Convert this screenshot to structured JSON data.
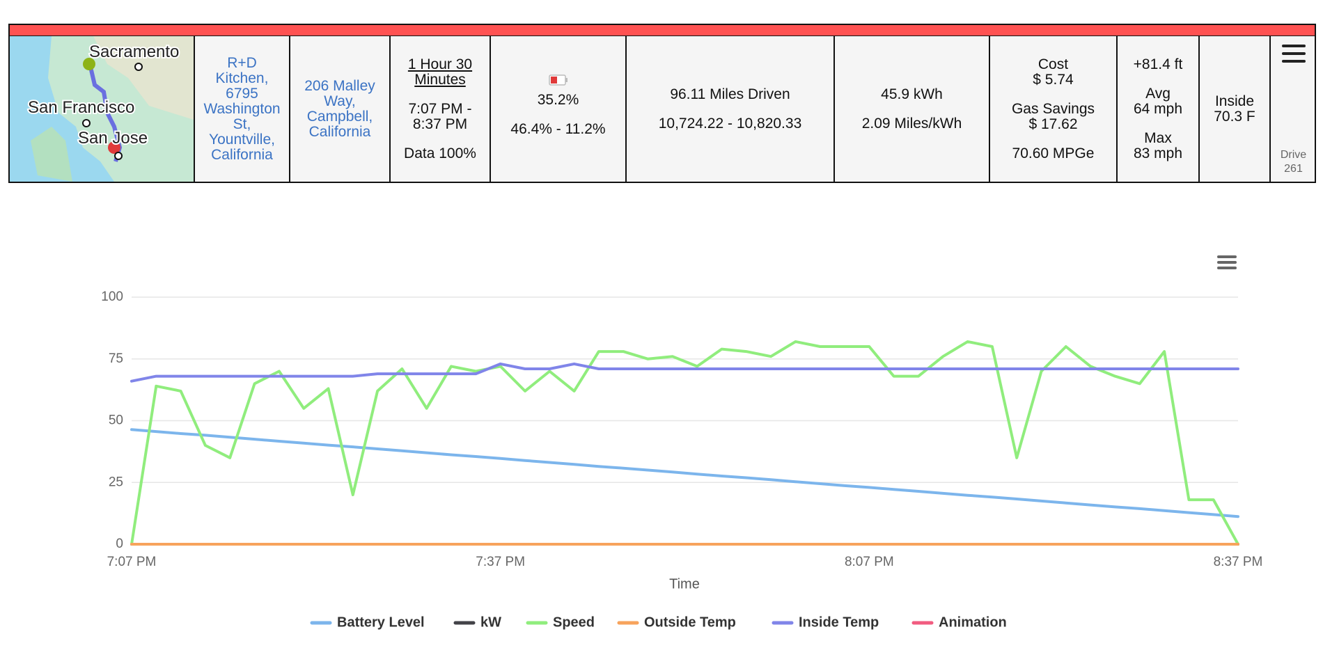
{
  "header": {
    "map_labels": [
      "Sacramento",
      "San Francisco",
      "San Jose"
    ],
    "cells": [
      [
        [
          "R+D Kitchen, 6795 Washington St, Yountville, California"
        ]
      ],
      [
        [
          "206 Malley Way, Campbell, California"
        ]
      ],
      [
        [
          "1 Hour 30 Minutes"
        ],
        [
          "7:07 PM - 8:37 PM"
        ],
        [
          "Data 100%"
        ]
      ],
      [
        [
          "35.2%"
        ],
        [
          "46.4% - 11.2%"
        ]
      ],
      [
        [
          "96.11 Miles Driven"
        ],
        [
          "10,724.22 - 10,820.33"
        ]
      ],
      [
        [
          "45.9 kWh"
        ],
        [
          "2.09 Miles/kWh"
        ]
      ],
      [
        [
          "Cost",
          "$ 5.74"
        ],
        [
          "Gas Savings",
          "$ 17.62"
        ],
        [
          "70.60 MPGe"
        ]
      ],
      [
        [
          "+81.4 ft"
        ],
        [
          "Avg",
          "64 mph"
        ],
        [
          "Max",
          "83 mph"
        ]
      ],
      [
        [
          "Inside",
          "70.3 F"
        ]
      ],
      [
        [
          "Drive",
          "261"
        ]
      ]
    ]
  },
  "chart_data": {
    "type": "line",
    "x_label": "Time",
    "categories": [
      "7:07 PM",
      null,
      null,
      null,
      null,
      null,
      null,
      null,
      null,
      null,
      null,
      null,
      null,
      null,
      null,
      "7:37 PM",
      null,
      null,
      null,
      null,
      null,
      null,
      null,
      null,
      null,
      null,
      null,
      null,
      null,
      null,
      "8:07 PM",
      null,
      null,
      null,
      null,
      null,
      null,
      null,
      null,
      null,
      null,
      null,
      null,
      null,
      null,
      "8:37 PM"
    ],
    "ylim": [
      0,
      100
    ],
    "yticks": [
      0,
      25,
      50,
      75,
      100
    ],
    "grid": true,
    "series": [
      {
        "name": "Battery Level",
        "color": "#7cb5ec",
        "values": [
          46.4,
          45.6,
          44.8,
          44.1,
          43.3,
          42.5,
          41.7,
          40.9,
          40.1,
          39.4,
          38.6,
          37.8,
          37.0,
          36.2,
          35.5,
          34.7,
          33.9,
          33.1,
          32.3,
          31.5,
          30.8,
          30.0,
          29.2,
          28.4,
          27.6,
          26.9,
          26.1,
          25.3,
          24.5,
          23.7,
          23.0,
          22.2,
          21.4,
          20.6,
          19.8,
          19.1,
          18.3,
          17.5,
          16.7,
          15.9,
          15.1,
          14.4,
          13.6,
          12.8,
          12.0,
          11.2
        ]
      },
      {
        "name": "kW",
        "color": "#434348",
        "values": [
          0,
          0,
          0,
          0,
          0,
          0,
          0,
          0,
          0,
          0,
          0,
          0,
          0,
          0,
          0,
          0,
          0,
          0,
          0,
          0,
          0,
          0,
          0,
          0,
          0,
          0,
          0,
          0,
          0,
          0,
          0,
          0,
          0,
          0,
          0,
          0,
          0,
          0,
          0,
          0,
          0,
          0,
          0,
          0,
          0,
          0
        ]
      },
      {
        "name": "Speed",
        "color": "#90ed7d",
        "values": [
          0,
          64,
          62,
          40,
          35,
          65,
          70,
          55,
          63,
          20,
          62,
          71,
          55,
          72,
          70,
          72,
          62,
          70,
          62,
          78,
          78,
          75,
          76,
          72,
          79,
          78,
          76,
          82,
          80,
          80,
          80,
          68,
          68,
          76,
          82,
          80,
          35,
          70,
          80,
          72,
          68,
          65,
          78,
          18,
          18,
          0
        ]
      },
      {
        "name": "Outside Temp",
        "color": "#f7a35c",
        "values": [
          0,
          0,
          0,
          0,
          0,
          0,
          0,
          0,
          0,
          0,
          0,
          0,
          0,
          0,
          0,
          0,
          0,
          0,
          0,
          0,
          0,
          0,
          0,
          0,
          0,
          0,
          0,
          0,
          0,
          0,
          0,
          0,
          0,
          0,
          0,
          0,
          0,
          0,
          0,
          0,
          0,
          0,
          0,
          0,
          0,
          0
        ]
      },
      {
        "name": "Inside Temp",
        "color": "#8085e9",
        "values": [
          66,
          68,
          68,
          68,
          68,
          68,
          68,
          68,
          68,
          68,
          69,
          69,
          69,
          69,
          69,
          73,
          71,
          71,
          73,
          71,
          71,
          71,
          71,
          71,
          71,
          71,
          71,
          71,
          71,
          71,
          71,
          71,
          71,
          71,
          71,
          71,
          71,
          71,
          71,
          71,
          71,
          71,
          71,
          71,
          71,
          71
        ]
      },
      {
        "name": "Animation",
        "color": "#f15c80"
      }
    ]
  }
}
